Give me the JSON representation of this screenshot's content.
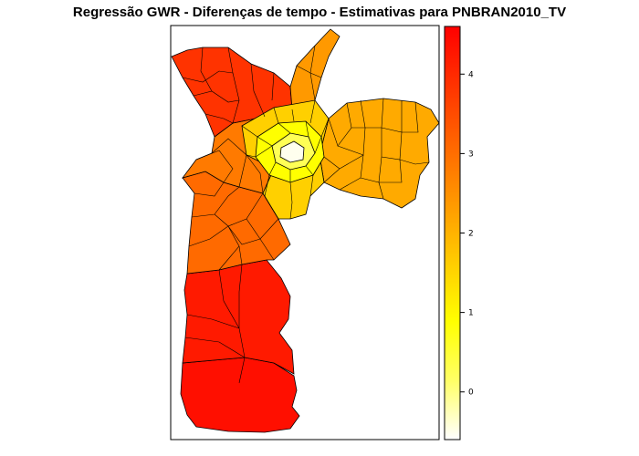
{
  "title": "Regressão GWR - Diferenças de tempo - Estimativas para PNBRAN2010_TV",
  "colorbar": {
    "ticks": [
      {
        "label": "4",
        "value": 4
      },
      {
        "label": "3",
        "value": 3
      },
      {
        "label": "2",
        "value": 2
      },
      {
        "label": "1",
        "value": 1
      },
      {
        "label": "0",
        "value": 0
      }
    ],
    "range": [
      -0.6,
      4.6
    ],
    "palette": [
      "#ffffff",
      "#ffff66",
      "#ffff00",
      "#ffcc00",
      "#ff9900",
      "#ff6600",
      "#ff3300",
      "#ff0000"
    ]
  },
  "map": {
    "region_values": {
      "center": -0.3,
      "inner_ring": 0.6,
      "middle_ring": 1.4,
      "east": 2.3,
      "north_east": 2.6,
      "west": 3.0,
      "north_west": 3.6,
      "far_north_west": 4.1,
      "south": 4.3,
      "far_south": 4.5
    }
  }
}
